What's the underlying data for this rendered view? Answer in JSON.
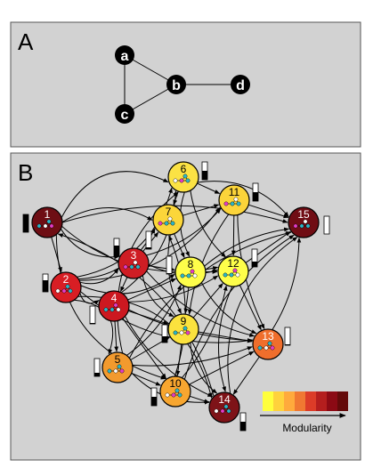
{
  "panel_a": {
    "letter": "A",
    "nodes": [
      {
        "label": "a"
      },
      {
        "label": "b"
      },
      {
        "label": "c"
      },
      {
        "label": "d"
      }
    ]
  },
  "panel_b": {
    "letter": "B",
    "legend": {
      "label": "Modularity",
      "colors": [
        "#ffff3c",
        "#ffd23c",
        "#ffaa3c",
        "#f07832",
        "#dc3c28",
        "#b41e1e",
        "#8c0a14",
        "#640a0a"
      ]
    },
    "communities": [
      {
        "label": "1",
        "color": "#6e0e14",
        "bar_level": 1.0
      },
      {
        "label": "2",
        "color": "#d81e24",
        "bar_level": 0.65
      },
      {
        "label": "3",
        "color": "#cf1d24",
        "bar_level": 0.6
      },
      {
        "label": "4",
        "color": "#cc1820",
        "bar_level": 0.05
      },
      {
        "label": "5",
        "color": "#f29a2e",
        "bar_level": 0.2
      },
      {
        "label": "6",
        "color": "#fbe244",
        "bar_level": 0.5
      },
      {
        "label": "7",
        "color": "#fbd63a",
        "bar_level": 0.1
      },
      {
        "label": "8",
        "color": "#fefe4a",
        "bar_level": 0.05
      },
      {
        "label": "9",
        "color": "#fbe23e",
        "bar_level": 0.35
      },
      {
        "label": "10",
        "color": "#f7a630",
        "bar_level": 0.5
      },
      {
        "label": "11",
        "color": "#fbd43a",
        "bar_level": 0.5
      },
      {
        "label": "12",
        "color": "#fefe4a",
        "bar_level": 0.3
      },
      {
        "label": "13",
        "color": "#ef6e2c",
        "bar_level": 0.05
      },
      {
        "label": "14",
        "color": "#7e1318",
        "bar_level": 0.5
      },
      {
        "label": "15",
        "color": "#700d14",
        "bar_level": 0.0
      }
    ]
  }
}
